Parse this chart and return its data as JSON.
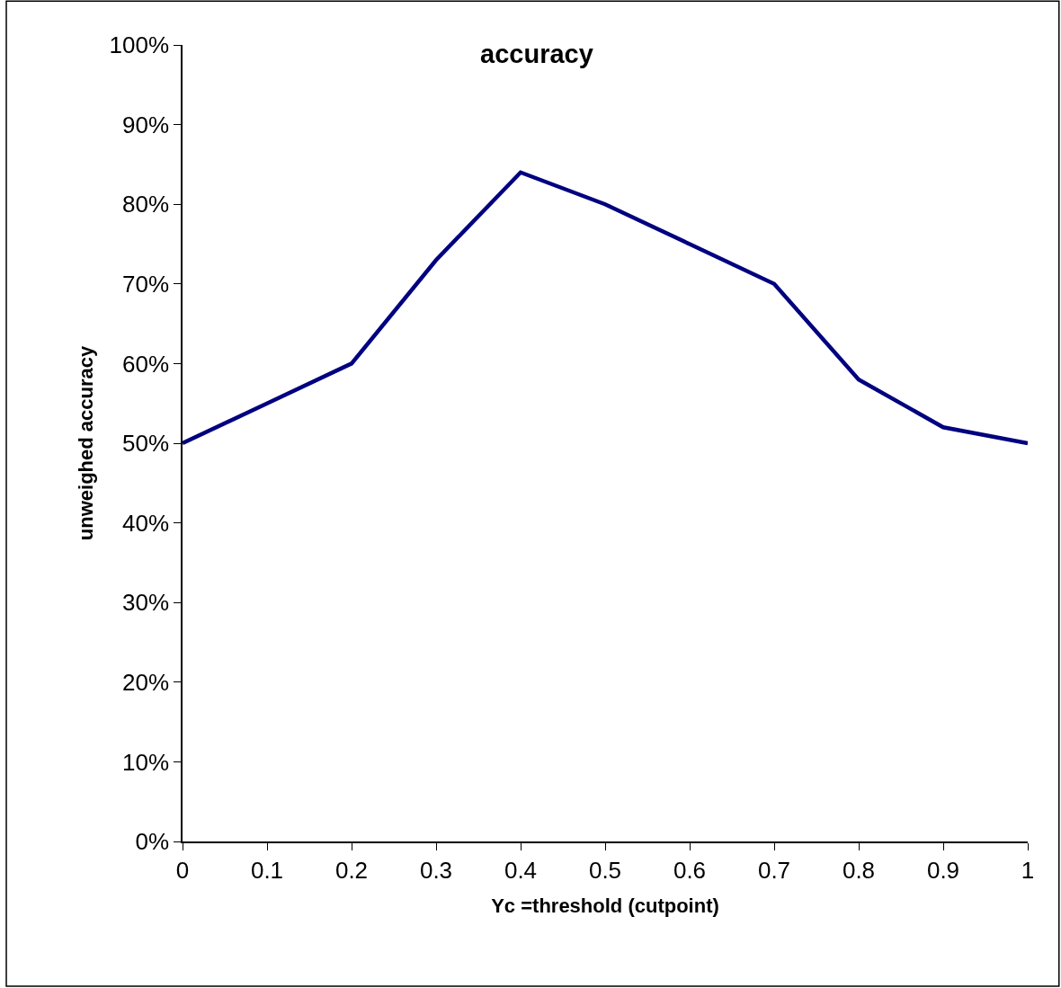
{
  "chart_data": {
    "type": "line",
    "title": "accuracy",
    "xlabel": "Yc =threshold (cutpoint)",
    "ylabel": "unweighed accuracy",
    "x": [
      0,
      0.1,
      0.2,
      0.3,
      0.4,
      0.5,
      0.6,
      0.7,
      0.8,
      0.9,
      1
    ],
    "series": [
      {
        "color": "#000080",
        "values": [
          50,
          55,
          60,
          73,
          84,
          80,
          75,
          70,
          58,
          52,
          50
        ]
      }
    ],
    "xlim": [
      0,
      1
    ],
    "xticks": [
      0,
      0.1,
      0.2,
      0.3,
      0.4,
      0.5,
      0.6,
      0.7,
      0.8,
      0.9,
      1
    ],
    "ylim": [
      0,
      100
    ],
    "yticks": [
      {
        "value": 0,
        "label": "0%"
      },
      {
        "value": 10,
        "label": "10%"
      },
      {
        "value": 20,
        "label": "20%"
      },
      {
        "value": 30,
        "label": "30%"
      },
      {
        "value": 40,
        "label": "40%"
      },
      {
        "value": 50,
        "label": "50%"
      },
      {
        "value": 60,
        "label": "60%"
      },
      {
        "value": 70,
        "label": "70%"
      },
      {
        "value": 80,
        "label": "80%"
      },
      {
        "value": 90,
        "label": "90%"
      },
      {
        "value": 100,
        "label": "100%"
      }
    ],
    "marker": "none",
    "line_style": "solid"
  }
}
